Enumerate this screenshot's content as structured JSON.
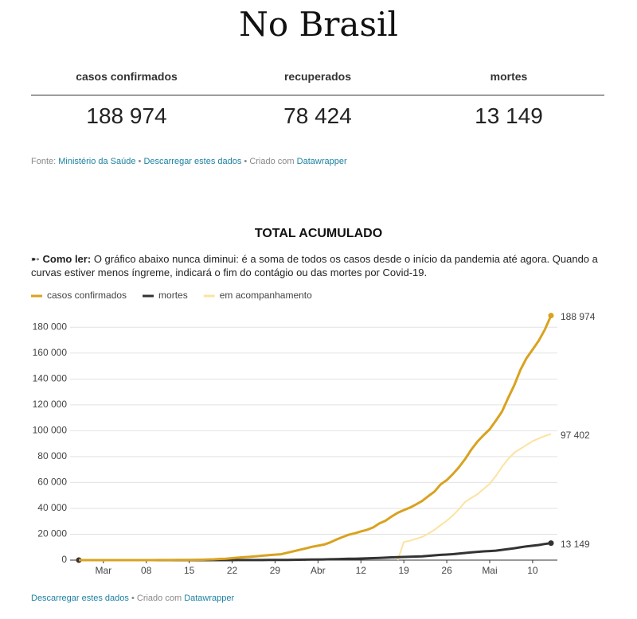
{
  "header": {
    "title": "No Brasil"
  },
  "stats": {
    "labels": [
      "casos confirmados",
      "recuperados",
      "mortes"
    ],
    "values": [
      "188 974",
      "78 424",
      "13 149"
    ]
  },
  "source": {
    "prefix": "Fonte:",
    "link": "Ministério da Saúde",
    "download": "Descarregar estes dados",
    "created": "Criado com",
    "tool": "Datawrapper"
  },
  "chart_data": {
    "type": "line",
    "title": "TOTAL ACUMULADO",
    "description_lead": "➸ Como ler:",
    "description": "O gráfico abaixo nunca diminui: é a soma de todos os casos desde o início da pandemia até agora. Quando a curvas estiver menos íngreme, indicará o fim do contágio ou das mortes por Covid-19.",
    "categories": [
      null,
      null,
      null,
      null,
      "Mar",
      null,
      null,
      null,
      null,
      null,
      null,
      "08",
      null,
      null,
      null,
      null,
      null,
      null,
      "15",
      null,
      null,
      null,
      null,
      null,
      null,
      "22",
      null,
      null,
      null,
      null,
      null,
      null,
      "29",
      null,
      null,
      null,
      null,
      null,
      null,
      "Abr",
      null,
      null,
      null,
      null,
      null,
      null,
      "12",
      null,
      null,
      null,
      null,
      null,
      null,
      "19",
      null,
      null,
      null,
      null,
      null,
      null,
      "26",
      null,
      null,
      null,
      null,
      null,
      null,
      "Mai",
      null,
      null,
      null,
      null,
      null,
      null,
      "10",
      null,
      null,
      null
    ],
    "series": [
      {
        "name": "casos confirmados",
        "color": "#d9a21f",
        "end_label": "188 974",
        "values": [
          1,
          1,
          1,
          2,
          2,
          2,
          2,
          3,
          8,
          13,
          19,
          25,
          25,
          34,
          52,
          77,
          98,
          121,
          200,
          234,
          291,
          428,
          621,
          904,
          1128,
          1546,
          1924,
          2247,
          2554,
          2985,
          3417,
          3904,
          4256,
          4579,
          5717,
          6836,
          7910,
          9056,
          10278,
          11130,
          12056,
          13717,
          15927,
          17857,
          19638,
          20727,
          22169,
          23430,
          25262,
          28320,
          30425,
          33682,
          36599,
          38654,
          40581,
          43079,
          45757,
          49492,
          52995,
          58509,
          61888,
          66501,
          71886,
          78162,
          85380,
          91589,
          96559,
          101147,
          107780,
          114715,
          125218,
          135106,
          146894,
          156061,
          162699,
          169594,
          178214,
          188974
        ]
      },
      {
        "name": "mortes",
        "color": "#333333",
        "end_label": "13 149",
        "values": [
          0,
          0,
          0,
          0,
          0,
          0,
          0,
          0,
          0,
          0,
          0,
          0,
          0,
          0,
          0,
          0,
          0,
          0,
          0,
          0,
          1,
          3,
          6,
          11,
          15,
          25,
          34,
          46,
          59,
          77,
          92,
          111,
          136,
          159,
          201,
          240,
          299,
          359,
          432,
          486,
          553,
          667,
          800,
          941,
          1056,
          1124,
          1223,
          1328,
          1532,
          1736,
          1924,
          2141,
          2354,
          2462,
          2587,
          2741,
          2906,
          3331,
          3704,
          4057,
          4286,
          4603,
          5083,
          5513,
          6006,
          6412,
          6761,
          7025,
          7321,
          7921,
          8536,
          9146,
          9897,
          10627,
          11123,
          11653,
          12461,
          13149
        ]
      },
      {
        "name": "em acompanhamento",
        "color": "#fbe3a0",
        "end_label": "97 402",
        "values": [
          null,
          null,
          null,
          null,
          null,
          null,
          null,
          null,
          null,
          null,
          null,
          null,
          null,
          null,
          null,
          null,
          null,
          null,
          null,
          null,
          null,
          null,
          null,
          null,
          null,
          null,
          null,
          null,
          null,
          null,
          null,
          null,
          null,
          null,
          null,
          null,
          null,
          null,
          null,
          null,
          null,
          null,
          null,
          null,
          null,
          null,
          null,
          null,
          null,
          null,
          null,
          null,
          0,
          14000,
          15000,
          16500,
          18000,
          20500,
          23500,
          27000,
          30500,
          34500,
          39500,
          45000,
          48000,
          51000,
          55000,
          59000,
          65000,
          72000,
          78000,
          83000,
          86000,
          89000,
          92000,
          94000,
          96000,
          97402
        ]
      }
    ],
    "ylim": [
      0,
      190000
    ],
    "yticks": [
      0,
      {
        "value": 20000,
        "label": "20 000"
      },
      {
        "value": 40000,
        "label": "40 000"
      },
      {
        "value": 60000,
        "label": "60 000"
      },
      {
        "value": 80000,
        "label": "80 000"
      },
      {
        "value": 100000,
        "label": "100 000"
      },
      {
        "value": 120000,
        "label": "120 000"
      },
      {
        "value": 140000,
        "label": "140 000"
      },
      {
        "value": 160000,
        "label": "160 000"
      },
      {
        "value": 180000,
        "label": "180 000"
      }
    ],
    "grid": true,
    "legend": "top"
  },
  "footer": {
    "download": "Descarregar estes dados",
    "created": "• Criado com",
    "tool": "Datawrapper"
  }
}
